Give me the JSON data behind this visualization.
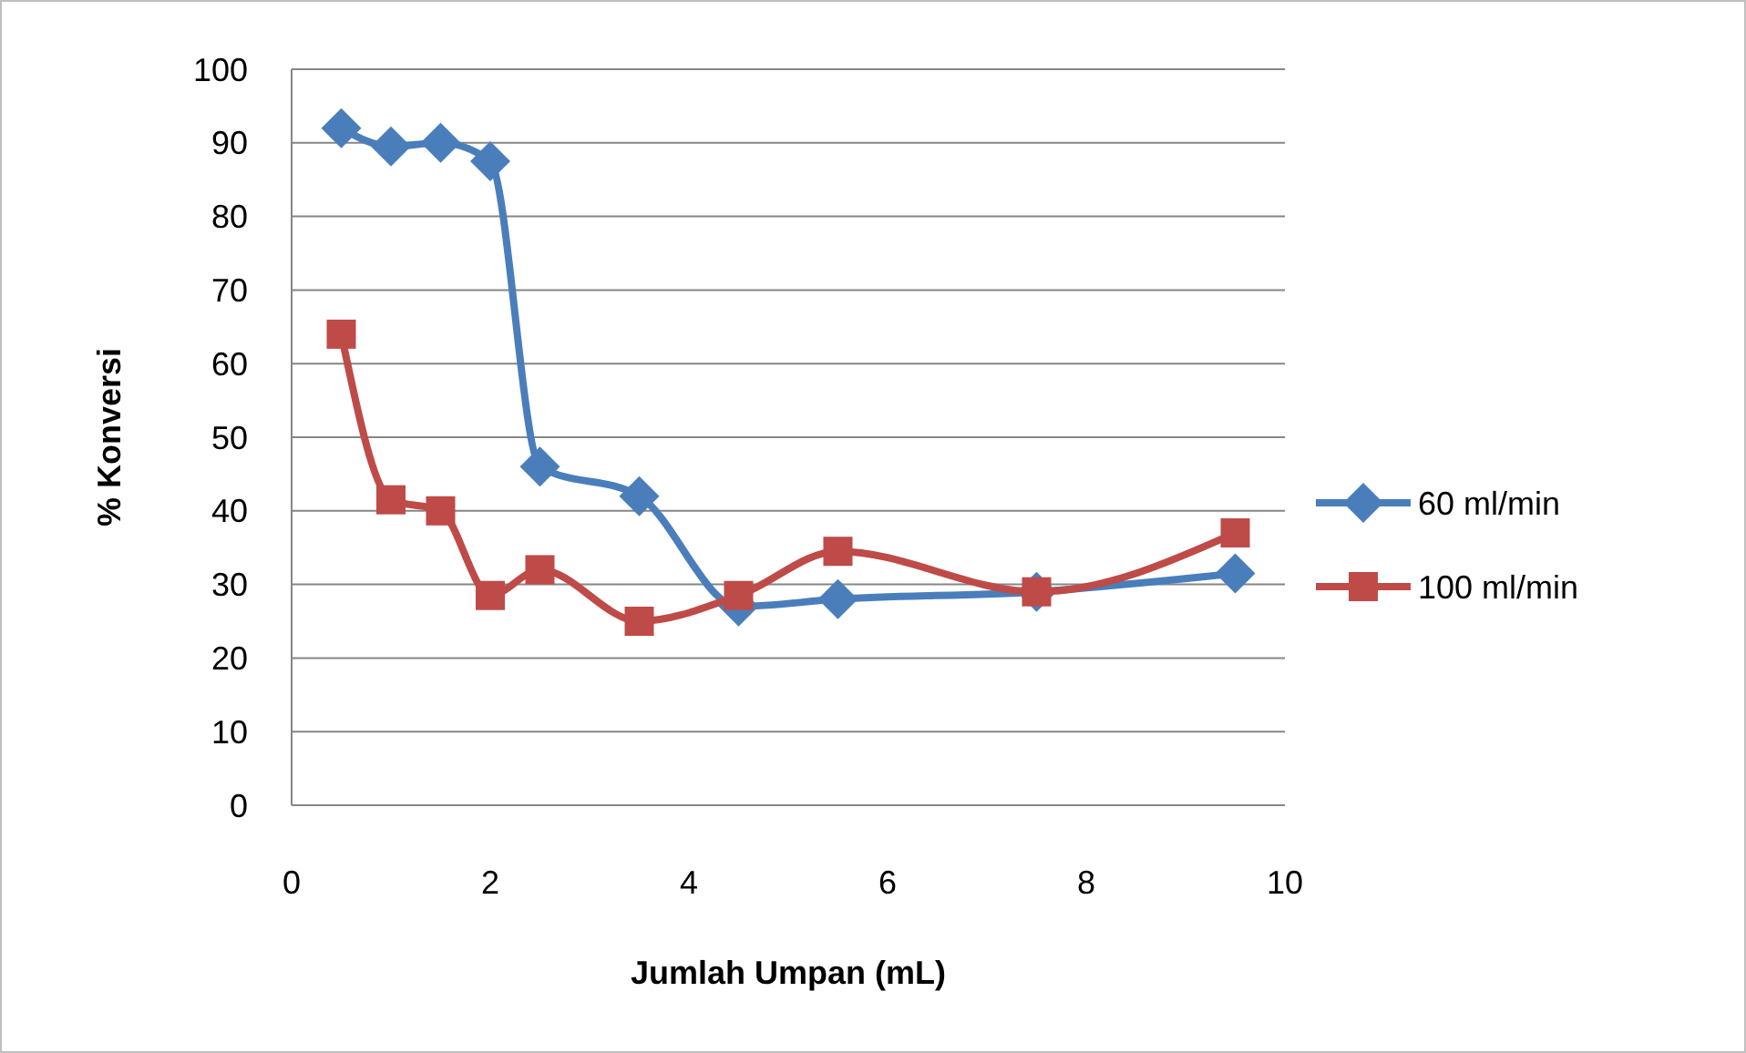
{
  "chart_data": {
    "type": "line",
    "xlabel": "Jumlah Umpan (mL)",
    "ylabel": "% Konversi",
    "xlim": [
      0,
      10
    ],
    "xticks": [
      0,
      2,
      4,
      6,
      8,
      10
    ],
    "ylim": [
      0,
      100
    ],
    "yticks": [
      0,
      10,
      20,
      30,
      40,
      50,
      60,
      70,
      80,
      90,
      100
    ],
    "grid": "y",
    "legend": "right",
    "series": [
      {
        "name": "60 ml/min",
        "color": "#4a7ebb",
        "marker": "diamond",
        "x": [
          0.5,
          1,
          1.5,
          2,
          2.5,
          3.5,
          4.5,
          5.5,
          7.5,
          9.5
        ],
        "values": [
          92,
          89.5,
          90,
          87.5,
          46,
          42,
          27,
          28,
          29,
          31.5
        ]
      },
      {
        "name": "100 ml/min",
        "color": "#be4b48",
        "marker": "square",
        "x": [
          0.5,
          1,
          1.5,
          2,
          2.5,
          3.5,
          4.5,
          5.5,
          7.5,
          9.5
        ],
        "values": [
          64,
          41.5,
          40,
          28.5,
          32,
          25,
          28.5,
          34.5,
          29,
          37
        ]
      }
    ]
  }
}
